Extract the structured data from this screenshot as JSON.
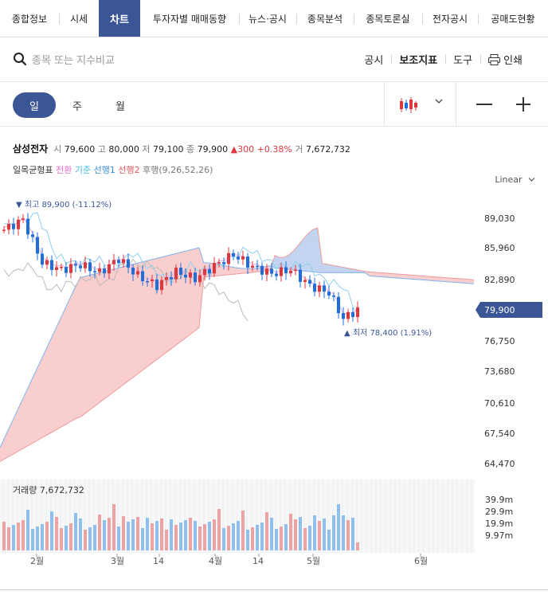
{
  "tabs": [
    "종합정보",
    "시세",
    "차트",
    "투자자별 매매동향",
    "뉴스·공시",
    "종목분석",
    "종목토론실",
    "전자공시",
    "공매도현황"
  ],
  "active_tab": "차트",
  "search": {
    "placeholder": "종목 또는 지수비교"
  },
  "tools": {
    "disclosure": "공시",
    "indicator": "보조지표",
    "tool": "도구",
    "print": "인쇄"
  },
  "periods": [
    "일",
    "주",
    "월"
  ],
  "active_period": "일",
  "quote": {
    "name": "삼성전자",
    "open_label": "시",
    "open": "79,600",
    "high_label": "고",
    "high": "80,000",
    "low_label": "저",
    "low": "79,100",
    "close_label": "종",
    "close": "79,900",
    "change": "▲300",
    "change_pct": "+0.38%",
    "volume_label": "거",
    "volume": "7,672,732"
  },
  "ichimoku": {
    "label": "일목균형표",
    "conversion": "전환",
    "base": "기준",
    "span1": "선행1",
    "span2": "선행2",
    "lagging": "후행(9,26,52,26)",
    "colors": {
      "conversion": "#e76bd2",
      "base": "#46b7e6",
      "span1": "#3b8fe0",
      "span2": "#e45a5a",
      "lagging": "#777777"
    }
  },
  "scale": "Linear",
  "chart_data": {
    "type": "candlestick",
    "price_axis_ticks": [
      89030,
      85960,
      82890,
      79900,
      76750,
      73680,
      70610,
      67540,
      64470
    ],
    "price_axis_labels": [
      "89,030",
      "85,960",
      "82,890",
      "79,900",
      "76,750",
      "73,680",
      "70,610",
      "67,540",
      "64,470"
    ],
    "current_price_label": "79,900",
    "high_annotation": "최고 89,900 (-11.12%)",
    "low_annotation": "최저 78,400 (1.91%)",
    "x_axis_labels": [
      "2월",
      "3월",
      "14",
      "4월",
      "14",
      "5월",
      "6월"
    ],
    "volume_label": "거래량 7,672,732",
    "volume_axis_labels": [
      "39.9m",
      "29.9m",
      "19.9m",
      "9.97m"
    ],
    "colors": {
      "up": "#e0373d",
      "down": "#1e6fd9",
      "cloud_bull": "#f7b9b9",
      "cloud_bear": "#b8d5f5",
      "vol_up": "#f0a2a2",
      "vol_down": "#8fbfee",
      "price_tag": "#3a5697"
    }
  }
}
